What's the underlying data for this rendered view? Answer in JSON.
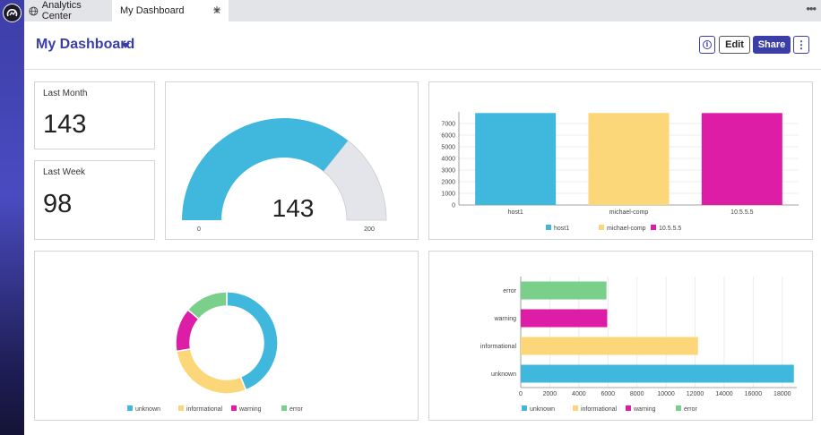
{
  "app": {
    "name": "Analytics Center"
  },
  "tabs": [
    {
      "label": "My Dashboard",
      "active": true
    }
  ],
  "header": {
    "title": "My Dashboard",
    "edit_label": "Edit",
    "share_label": "Share"
  },
  "stats": [
    {
      "label": "Last Month",
      "value": "143"
    },
    {
      "label": "Last Week",
      "value": "98"
    }
  ],
  "colors": {
    "accent": "#3b3ea6",
    "blue": "#40b7dd",
    "yellow": "#fcd779",
    "magenta": "#de1da6",
    "green": "#7acf8a",
    "gauge_track": "#e4e5ea"
  },
  "chart_data": [
    {
      "type": "gauge",
      "value": 143,
      "min": 0,
      "max": 200,
      "value_label": "143",
      "min_label": "0",
      "max_label": "200"
    },
    {
      "type": "bar",
      "categories": [
        "host1",
        "michael-comp",
        "10.5.5.5"
      ],
      "values": [
        7900,
        7900,
        7900
      ],
      "ylim": [
        0,
        8000
      ],
      "yticks": [
        0,
        1000,
        2000,
        3000,
        4000,
        5000,
        6000,
        7000
      ],
      "grid": true,
      "legend": "bottom",
      "legend_entries": [
        "host1",
        "michael-comp",
        "10.5.5.5"
      ]
    },
    {
      "type": "pie",
      "donut": true,
      "categories": [
        "unknown",
        "informational",
        "warning",
        "error"
      ],
      "values": [
        18800,
        12200,
        5950,
        5900
      ],
      "legend": "bottom"
    },
    {
      "type": "bar",
      "orientation": "horizontal",
      "categories": [
        "error",
        "warning",
        "informational",
        "unknown"
      ],
      "values": [
        5900,
        5950,
        12200,
        18800
      ],
      "xlim": [
        0,
        19000
      ],
      "xticks": [
        0,
        2000,
        4000,
        6000,
        8000,
        10000,
        12000,
        14000,
        16000,
        18000
      ],
      "grid": true,
      "legend": "bottom",
      "legend_entries": [
        "unknown",
        "informational",
        "warning",
        "error"
      ]
    }
  ]
}
